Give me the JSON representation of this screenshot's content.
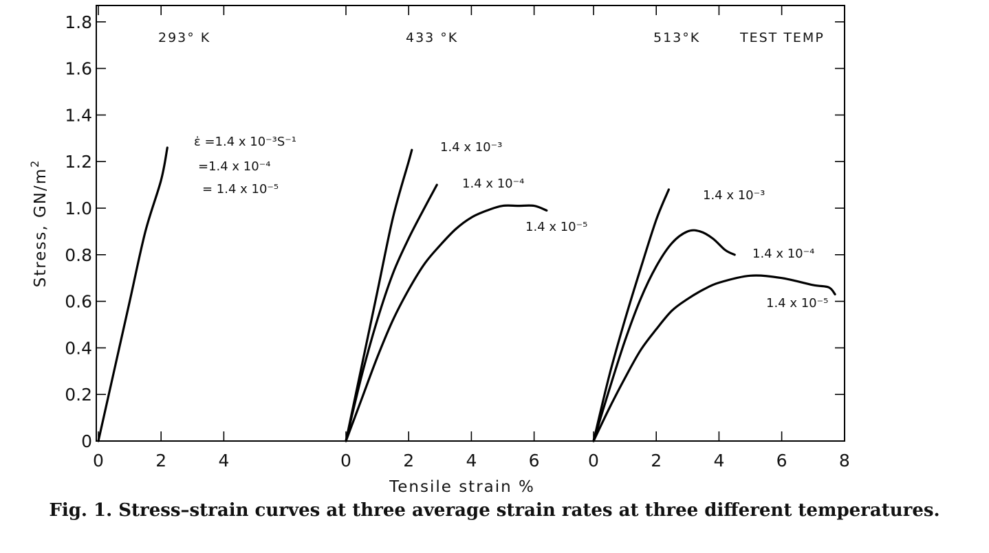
{
  "chart_data": {
    "type": "line",
    "xlabel": "Tensile strain %",
    "ylabel": "Stress, GN/m",
    "ylabel_sup": "2",
    "ylim": [
      0,
      1.88
    ],
    "y_ticks": [
      "0",
      "0.2",
      "0.4",
      "0.6",
      "0.8",
      "1.0",
      "1.2",
      "1.4",
      "1.6",
      "1.8"
    ],
    "grid": false,
    "extra_label": "TEST TEMP",
    "panels": [
      {
        "temperature": "293° K",
        "x_ticks": [
          "0",
          "2",
          "4"
        ],
        "rate_labels": [
          "ε̇ =1.4 x 10⁻³S⁻¹",
          "=1.4 x 10⁻⁴",
          "= 1.4 x 10⁻⁵"
        ],
        "series": [
          {
            "x": [
              0,
              0.5,
              1.0,
              1.5,
              2.0,
              2.2
            ],
            "y": [
              0,
              0.3,
              0.6,
              0.9,
              1.12,
              1.26
            ]
          }
        ]
      },
      {
        "temperature": "433 °K",
        "x_ticks": [
          "0",
          "2",
          "4",
          "6"
        ],
        "series": [
          {
            "name": "1.4 x 10⁻³",
            "x": [
              0,
              0.5,
              1.0,
              1.5,
              2.0,
              2.1
            ],
            "y": [
              0,
              0.32,
              0.64,
              0.96,
              1.2,
              1.25
            ]
          },
          {
            "name": "1.4 x 10⁻⁴",
            "x": [
              0,
              0.5,
              1.0,
              1.5,
              2.0,
              2.5,
              2.9
            ],
            "y": [
              0,
              0.28,
              0.52,
              0.72,
              0.87,
              1.0,
              1.1
            ]
          },
          {
            "name": "1.4 x 10⁻⁵",
            "x": [
              0,
              0.5,
              1.0,
              1.5,
              2.0,
              2.5,
              3.0,
              3.5,
              4.0,
              4.5,
              5.0,
              5.5,
              6.0,
              6.4
            ],
            "y": [
              0,
              0.18,
              0.36,
              0.52,
              0.65,
              0.76,
              0.84,
              0.91,
              0.96,
              0.99,
              1.01,
              1.01,
              1.01,
              0.99
            ]
          }
        ]
      },
      {
        "temperature": "513°K",
        "x_ticks": [
          "0",
          "2",
          "4",
          "6",
          "8"
        ],
        "series": [
          {
            "name": "1.4 x 10⁻³",
            "x": [
              0,
              0.5,
              1.0,
              1.5,
              2.0,
              2.4
            ],
            "y": [
              0,
              0.28,
              0.52,
              0.74,
              0.95,
              1.08
            ]
          },
          {
            "name": "1.4 x 10⁻⁴",
            "x": [
              0,
              0.5,
              1.0,
              1.5,
              2.0,
              2.5,
              3.0,
              3.4,
              3.8,
              4.2,
              4.5
            ],
            "y": [
              0,
              0.22,
              0.43,
              0.61,
              0.75,
              0.85,
              0.9,
              0.9,
              0.87,
              0.82,
              0.8
            ]
          },
          {
            "name": "1.4 x 10⁻⁵",
            "x": [
              0,
              0.5,
              1.0,
              1.5,
              2.0,
              2.5,
              3.0,
              3.5,
              4.0,
              5.0,
              6.0,
              7.0,
              7.5,
              7.7
            ],
            "y": [
              0,
              0.14,
              0.27,
              0.39,
              0.48,
              0.56,
              0.61,
              0.65,
              0.68,
              0.71,
              0.7,
              0.67,
              0.66,
              0.63
            ]
          }
        ]
      }
    ]
  },
  "caption": "Fig. 1. Stress–strain curves at three average strain rates at three different temperatures."
}
